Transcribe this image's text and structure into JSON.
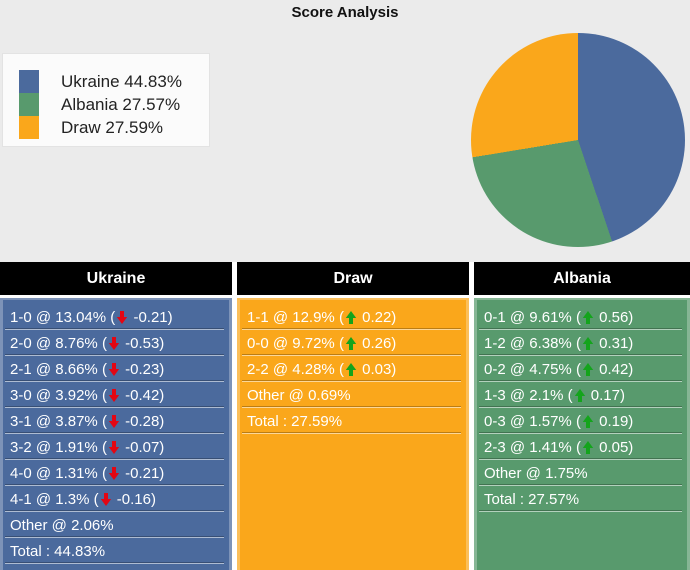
{
  "title": "Score Analysis",
  "legend": {
    "items": [
      {
        "label": "Ukraine 44.83%"
      },
      {
        "label": "Albania 27.57%"
      },
      {
        "label": "Draw 27.59%"
      }
    ]
  },
  "chart_data": {
    "type": "pie",
    "title": "Score Analysis",
    "series": [
      {
        "name": "Ukraine",
        "value": 44.83,
        "color": "#4b6a9d"
      },
      {
        "name": "Albania",
        "value": 27.57,
        "color": "#589a6d"
      },
      {
        "name": "Draw",
        "value": 27.59,
        "color": "#faa71b"
      }
    ],
    "start_angle_deg": 0,
    "direction": "clockwise",
    "legend_position": "top-left"
  },
  "table": {
    "columns": [
      {
        "header": "Ukraine",
        "color": "#4b6a9d",
        "rows": [
          {
            "text": "1-0 @ 13.04%",
            "dir": "down",
            "delta": "-0.21"
          },
          {
            "text": "2-0 @ 8.76%",
            "dir": "down",
            "delta": "-0.53"
          },
          {
            "text": "2-1 @ 8.66%",
            "dir": "down",
            "delta": "-0.23"
          },
          {
            "text": "3-0 @ 3.92%",
            "dir": "down",
            "delta": "-0.42"
          },
          {
            "text": "3-1 @ 3.87%",
            "dir": "down",
            "delta": "-0.28"
          },
          {
            "text": "3-2 @ 1.91%",
            "dir": "down",
            "delta": "-0.07"
          },
          {
            "text": "4-0 @ 1.31%",
            "dir": "down",
            "delta": "-0.21"
          },
          {
            "text": "4-1 @ 1.3%",
            "dir": "down",
            "delta": "-0.16"
          },
          {
            "text": "Other @ 2.06%"
          },
          {
            "text": "Total : 44.83%"
          }
        ]
      },
      {
        "header": "Draw",
        "color": "#faa71b",
        "rows": [
          {
            "text": "1-1 @ 12.9%",
            "dir": "up",
            "delta": "0.22"
          },
          {
            "text": "0-0 @ 9.72%",
            "dir": "up",
            "delta": "0.26"
          },
          {
            "text": "2-2 @ 4.28%",
            "dir": "up",
            "delta": "0.03"
          },
          {
            "text": "Other @ 0.69%"
          },
          {
            "text": "Total : 27.59%"
          }
        ]
      },
      {
        "header": "Albania",
        "color": "#589a6d",
        "rows": [
          {
            "text": "0-1 @ 9.61%",
            "dir": "up",
            "delta": "0.56"
          },
          {
            "text": "1-2 @ 6.38%",
            "dir": "up",
            "delta": "0.31"
          },
          {
            "text": "0-2 @ 4.75%",
            "dir": "up",
            "delta": "0.42"
          },
          {
            "text": "1-3 @ 2.1%",
            "dir": "up",
            "delta": "0.17"
          },
          {
            "text": "0-3 @ 1.57%",
            "dir": "up",
            "delta": "0.19"
          },
          {
            "text": "2-3 @ 1.41%",
            "dir": "up",
            "delta": "0.05"
          },
          {
            "text": "Other @ 1.75%"
          },
          {
            "text": "Total : 27.57%"
          }
        ]
      }
    ]
  },
  "colors": {
    "up_arrow": "#14a41c",
    "down_arrow": "#e30613",
    "header_bg": "#000000",
    "header_text": "#ffffff",
    "row_text": "#ffffff"
  }
}
